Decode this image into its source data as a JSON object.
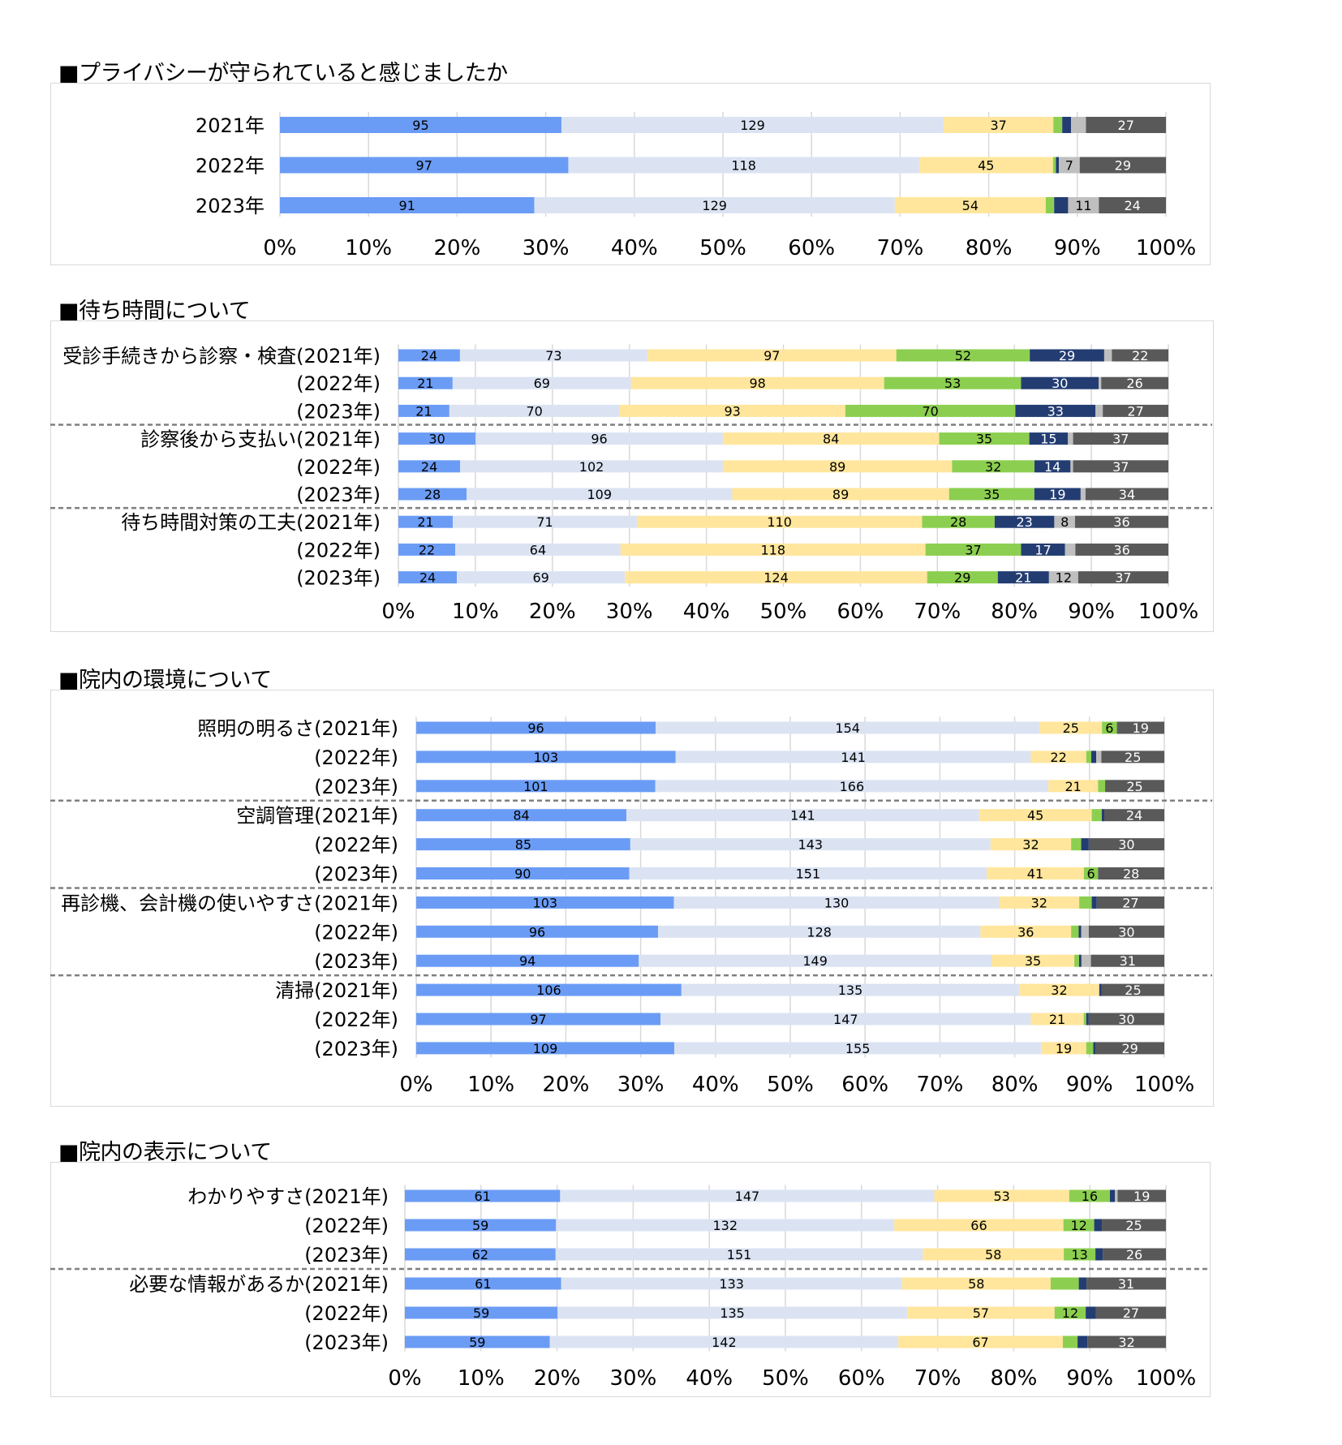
{
  "colors": {
    "palette": [
      "#6b9cf5",
      "#dbe3f3",
      "#ffe69c",
      "#8ccf50",
      "#233d72",
      "#bfbfbf",
      "#595959"
    ],
    "label_dark": "#000000",
    "label_light": "#ffffff"
  },
  "chart_data": [
    {
      "type": "bar",
      "orientation": "horizontal",
      "stacked": "percent",
      "title": "■プライバシーが守られていると感じましたか",
      "categories": [
        "2021年",
        "2022年",
        "2023年"
      ],
      "series": [
        {
          "values": [
            95,
            97,
            91
          ]
        },
        {
          "values": [
            129,
            118,
            129
          ]
        },
        {
          "values": [
            37,
            45,
            54
          ]
        },
        {
          "values": [
            3,
            1,
            3
          ]
        },
        {
          "values": [
            3,
            1,
            5
          ]
        },
        {
          "values": [
            5,
            7,
            11
          ]
        },
        {
          "values": [
            27,
            29,
            24
          ]
        }
      ],
      "xticks": [
        "0%",
        "10%",
        "20%",
        "30%",
        "40%",
        "50%",
        "60%",
        "70%",
        "80%",
        "90%",
        "100%"
      ],
      "xlim": [
        0,
        100
      ],
      "group_breaks": []
    },
    {
      "type": "bar",
      "orientation": "horizontal",
      "stacked": "percent",
      "title": "■待ち時間について",
      "categories": [
        "受診手続きから診察・検査(2021年)",
        "(2022年)",
        "(2023年)",
        "診察後から支払い(2021年)",
        "(2022年)",
        "(2023年)",
        "待ち時間対策の工夫(2021年)",
        "(2022年)",
        "(2023年)"
      ],
      "series": [
        {
          "values": [
            24,
            21,
            21,
            30,
            24,
            28,
            21,
            22,
            24
          ]
        },
        {
          "values": [
            73,
            69,
            70,
            96,
            102,
            109,
            71,
            64,
            69
          ]
        },
        {
          "values": [
            97,
            98,
            93,
            84,
            89,
            89,
            110,
            118,
            124
          ]
        },
        {
          "values": [
            52,
            53,
            70,
            35,
            32,
            35,
            28,
            37,
            29
          ]
        },
        {
          "values": [
            29,
            30,
            33,
            15,
            14,
            19,
            23,
            17,
            21
          ]
        },
        {
          "values": [
            3,
            1,
            3,
            2,
            1,
            2,
            8,
            4,
            12
          ]
        },
        {
          "values": [
            22,
            26,
            27,
            37,
            37,
            34,
            36,
            36,
            37
          ]
        }
      ],
      "xticks": [
        "0%",
        "10%",
        "20%",
        "30%",
        "40%",
        "50%",
        "60%",
        "70%",
        "80%",
        "90%",
        "100%"
      ],
      "xlim": [
        0,
        100
      ],
      "group_breaks": [
        3,
        6
      ]
    },
    {
      "type": "bar",
      "orientation": "horizontal",
      "stacked": "percent",
      "title": "■院内の環境について",
      "categories": [
        "照明の明るさ(2021年)",
        "(2022年)",
        "(2023年)",
        "空調管理(2021年)",
        "(2022年)",
        "(2023年)",
        "再診機、会計機の使いやすさ(2021年)",
        "(2022年)",
        "(2023年)",
        "清掃(2021年)",
        "(2022年)",
        "(2023年)"
      ],
      "series": [
        {
          "values": [
            96,
            103,
            101,
            84,
            85,
            90,
            103,
            96,
            94,
            106,
            97,
            109
          ]
        },
        {
          "values": [
            154,
            141,
            166,
            141,
            143,
            151,
            130,
            128,
            149,
            135,
            147,
            155
          ]
        },
        {
          "values": [
            25,
            22,
            21,
            45,
            32,
            41,
            32,
            36,
            35,
            32,
            21,
            19
          ]
        },
        {
          "values": [
            6,
            2,
            3,
            4,
            4,
            6,
            5,
            3,
            2,
            0,
            1,
            3
          ]
        },
        {
          "values": [
            0,
            2,
            0,
            1,
            3,
            0,
            2,
            1,
            1,
            1,
            1,
            1
          ]
        },
        {
          "values": [
            0,
            2,
            0,
            0,
            0,
            0,
            0,
            3,
            4,
            0,
            0,
            0
          ]
        },
        {
          "values": [
            19,
            25,
            25,
            24,
            30,
            28,
            27,
            30,
            31,
            25,
            30,
            29
          ]
        }
      ],
      "xticks": [
        "0%",
        "10%",
        "20%",
        "30%",
        "40%",
        "50%",
        "60%",
        "70%",
        "80%",
        "90%",
        "100%"
      ],
      "xlim": [
        0,
        100
      ],
      "group_breaks": [
        3,
        6,
        9
      ]
    },
    {
      "type": "bar",
      "orientation": "horizontal",
      "stacked": "percent",
      "title": "■院内の表示について",
      "categories": [
        "わかりやすさ(2021年)",
        "(2022年)",
        "(2023年)",
        "必要な情報があるか(2021年)",
        "(2022年)",
        "(2023年)"
      ],
      "series": [
        {
          "values": [
            61,
            59,
            62,
            61,
            59,
            59
          ]
        },
        {
          "values": [
            147,
            132,
            151,
            133,
            135,
            142
          ]
        },
        {
          "values": [
            53,
            66,
            58,
            58,
            57,
            67
          ]
        },
        {
          "values": [
            16,
            12,
            13,
            11,
            12,
            6
          ]
        },
        {
          "values": [
            2,
            3,
            3,
            3,
            4,
            4
          ]
        },
        {
          "values": [
            1,
            0,
            0,
            0,
            0,
            0
          ]
        },
        {
          "values": [
            19,
            25,
            26,
            31,
            27,
            32
          ]
        }
      ],
      "xticks": [
        "0%",
        "10%",
        "20%",
        "30%",
        "40%",
        "50%",
        "60%",
        "70%",
        "80%",
        "90%",
        "100%"
      ],
      "xlim": [
        0,
        100
      ],
      "group_breaks": [
        3
      ]
    }
  ]
}
